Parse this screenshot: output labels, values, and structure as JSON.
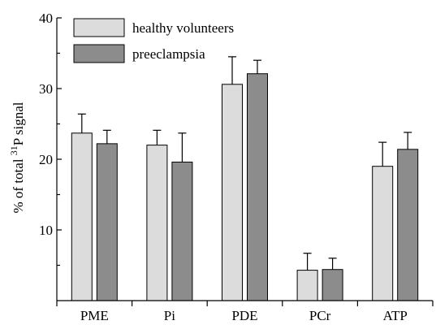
{
  "chart_data": {
    "type": "bar",
    "title": "",
    "xlabel": "",
    "ylabel_parts": {
      "before": "% of total ",
      "superscript": "31",
      "after": "P signal"
    },
    "ylim": [
      0,
      40
    ],
    "yticks": [
      10,
      20,
      30,
      40
    ],
    "categories": [
      "PME",
      "Pi",
      "PDE",
      "PCr",
      "ATP"
    ],
    "series": [
      {
        "name": "healthy volunteers",
        "color": "#dcdcdc",
        "values": [
          23.7,
          22.0,
          30.6,
          4.3,
          19.0
        ],
        "errors": [
          2.7,
          2.1,
          3.9,
          2.4,
          3.4
        ]
      },
      {
        "name": "preeclampsia",
        "color": "#8c8c8c",
        "values": [
          22.2,
          19.6,
          32.1,
          4.4,
          21.4
        ],
        "errors": [
          1.9,
          4.1,
          1.9,
          1.6,
          2.4
        ]
      }
    ],
    "legend_position": "top-left",
    "grid": false
  }
}
